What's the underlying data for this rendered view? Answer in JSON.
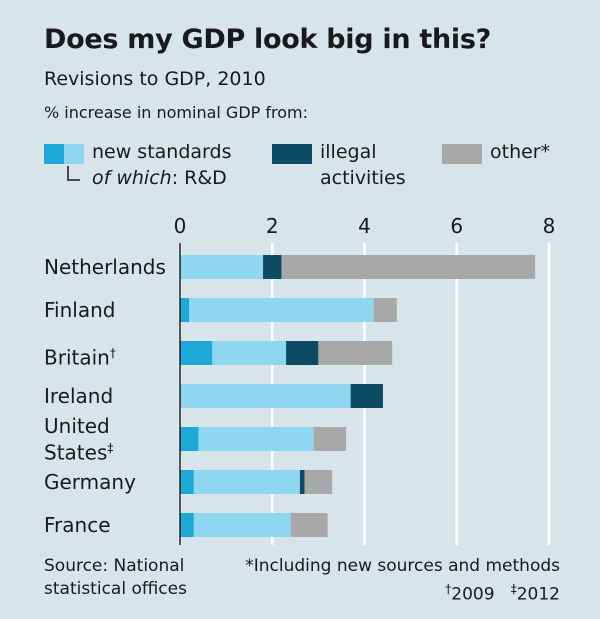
{
  "header": {
    "title": "Does my GDP look big in this?",
    "subtitle": "Revisions to GDP, 2010",
    "unit_note": "% increase in nominal GDP from:"
  },
  "legend": {
    "new_standards": "new standards",
    "of_which_prefix": "of which",
    "of_which_suffix": ": R&D",
    "illegal_1": "illegal",
    "illegal_2": "activities",
    "other": "other*"
  },
  "colors": {
    "rd": "#1da8d8",
    "new_standards": "#8fd6f0",
    "illegal": "#0d4a63",
    "other": "#a8a8a8",
    "background": "#d7e4ea",
    "gridline": "#ffffff"
  },
  "chart_data": {
    "type": "bar",
    "orientation": "horizontal",
    "stacked": true,
    "title": "Does my GDP look big in this?",
    "subtitle": "Revisions to GDP, 2010",
    "xlim": [
      0,
      8
    ],
    "xticks": [
      "0",
      "2",
      "4",
      "6",
      "8"
    ],
    "grid": true,
    "categories": [
      "Netherlands",
      "Finland",
      "Britain",
      "Ireland",
      "United States",
      "Germany",
      "France"
    ],
    "category_marks": [
      "",
      "",
      "†",
      "",
      "‡",
      "",
      ""
    ],
    "series": [
      {
        "name": "R&D",
        "values": [
          0.0,
          0.2,
          0.7,
          0.0,
          0.4,
          0.3,
          0.3
        ]
      },
      {
        "name": "new standards",
        "values": [
          1.8,
          4.0,
          1.6,
          3.7,
          2.5,
          2.3,
          2.1
        ]
      },
      {
        "name": "illegal activities",
        "values": [
          0.4,
          0.0,
          0.7,
          0.7,
          0.0,
          0.1,
          0.0
        ]
      },
      {
        "name": "other*",
        "values": [
          5.5,
          0.5,
          1.6,
          0.0,
          0.7,
          0.6,
          0.8
        ]
      }
    ]
  },
  "footer": {
    "source_1": "Source: National",
    "source_2": "statistical offices",
    "note": "*Including new sources and methods",
    "dagger_mark": "†",
    "dagger_year": "2009",
    "ddagger_mark": "‡",
    "ddagger_year": "2012"
  }
}
